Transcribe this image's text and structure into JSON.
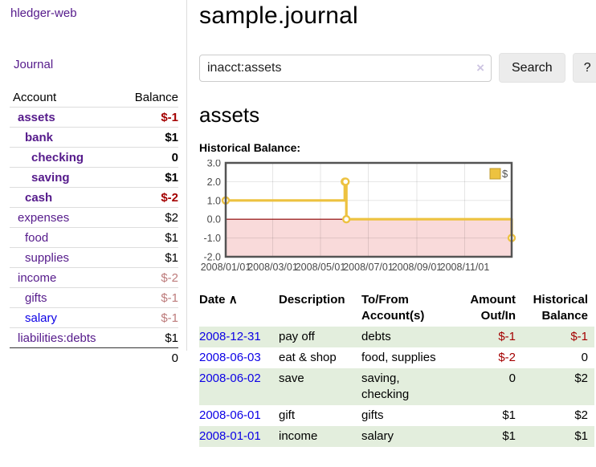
{
  "app": {
    "brand": "hledger-web",
    "nav_journal": "Journal"
  },
  "colors": {
    "link_purple": "#551a8b",
    "link_blue": "#0c00e6",
    "negative_red": "#a40000",
    "faded_red": "#bd7b7b",
    "row_stripe_green": "#e3eedd",
    "chart_gold": "#edc240",
    "chart_negative_fill": "#f9dada",
    "chart_zero_line": "#8b0000",
    "chart_border": "#545454"
  },
  "sidebar": {
    "header": {
      "account": "Account",
      "balance": "Balance"
    },
    "accounts": [
      {
        "name": "assets",
        "balance": "$-1"
      },
      {
        "name": "bank",
        "balance": "$1"
      },
      {
        "name": "checking",
        "balance": "0"
      },
      {
        "name": "saving",
        "balance": "$1"
      },
      {
        "name": "cash",
        "balance": "$-2"
      },
      {
        "name": "expenses",
        "balance": "$2"
      },
      {
        "name": "food",
        "balance": "$1"
      },
      {
        "name": "supplies",
        "balance": "$1"
      },
      {
        "name": "income",
        "balance": "$-2"
      },
      {
        "name": "gifts",
        "balance": "$-1"
      },
      {
        "name": "salary",
        "balance": "$-1"
      },
      {
        "name": "liabilities:debts",
        "balance": "$1"
      }
    ],
    "total": "0"
  },
  "header": {
    "title": "sample.journal"
  },
  "search": {
    "value": "inacct:assets",
    "clear_icon": "×",
    "button": "Search",
    "help_button": "?"
  },
  "main": {
    "account_heading": "assets",
    "chart_label": "Historical Balance:",
    "table": {
      "headers": {
        "date": "Date",
        "sort_arrow": "∧",
        "description": "Description",
        "tofrom": "To/From Account(s)",
        "amount": "Amount Out/In",
        "balance": "Historical Balance"
      },
      "rows": [
        {
          "date": "2008-12-31",
          "description": "pay off",
          "tofrom": "debts",
          "amount": "$-1",
          "balance": "$-1"
        },
        {
          "date": "2008-06-03",
          "description": "eat & shop",
          "tofrom": "food, supplies",
          "amount": "$-2",
          "balance": "0"
        },
        {
          "date": "2008-06-02",
          "description": "save",
          "tofrom": "saving, checking",
          "amount": "0",
          "balance": "$2"
        },
        {
          "date": "2008-06-01",
          "description": "gift",
          "tofrom": "gifts",
          "amount": "$1",
          "balance": "$2"
        },
        {
          "date": "2008-01-01",
          "description": "income",
          "tofrom": "salary",
          "amount": "$1",
          "balance": "$1"
        }
      ]
    }
  },
  "chart_data": {
    "type": "line",
    "title": "Historical Balance:",
    "step": true,
    "series": [
      {
        "name": "$",
        "color": "#edc240",
        "points": [
          [
            "2008-01-01",
            1
          ],
          [
            "2008-06-01",
            2
          ],
          [
            "2008-06-02",
            2
          ],
          [
            "2008-06-03",
            0
          ],
          [
            "2008-12-31",
            -1
          ]
        ]
      }
    ],
    "xlim": [
      "2008-01-01",
      "2008-12-31"
    ],
    "ylim": [
      -2,
      3
    ],
    "x_ticks": [
      "2008/01/01",
      "2008/03/01",
      "2008/05/01",
      "2008/07/01",
      "2008/09/01",
      "2008/11/01"
    ],
    "y_ticks": [
      3.0,
      2.0,
      1.0,
      0.0,
      -1.0,
      -2.0
    ],
    "grid": true,
    "legend_position": "top-right",
    "negative_fill": "#f9dada",
    "zero_line_color": "#8b0000"
  }
}
